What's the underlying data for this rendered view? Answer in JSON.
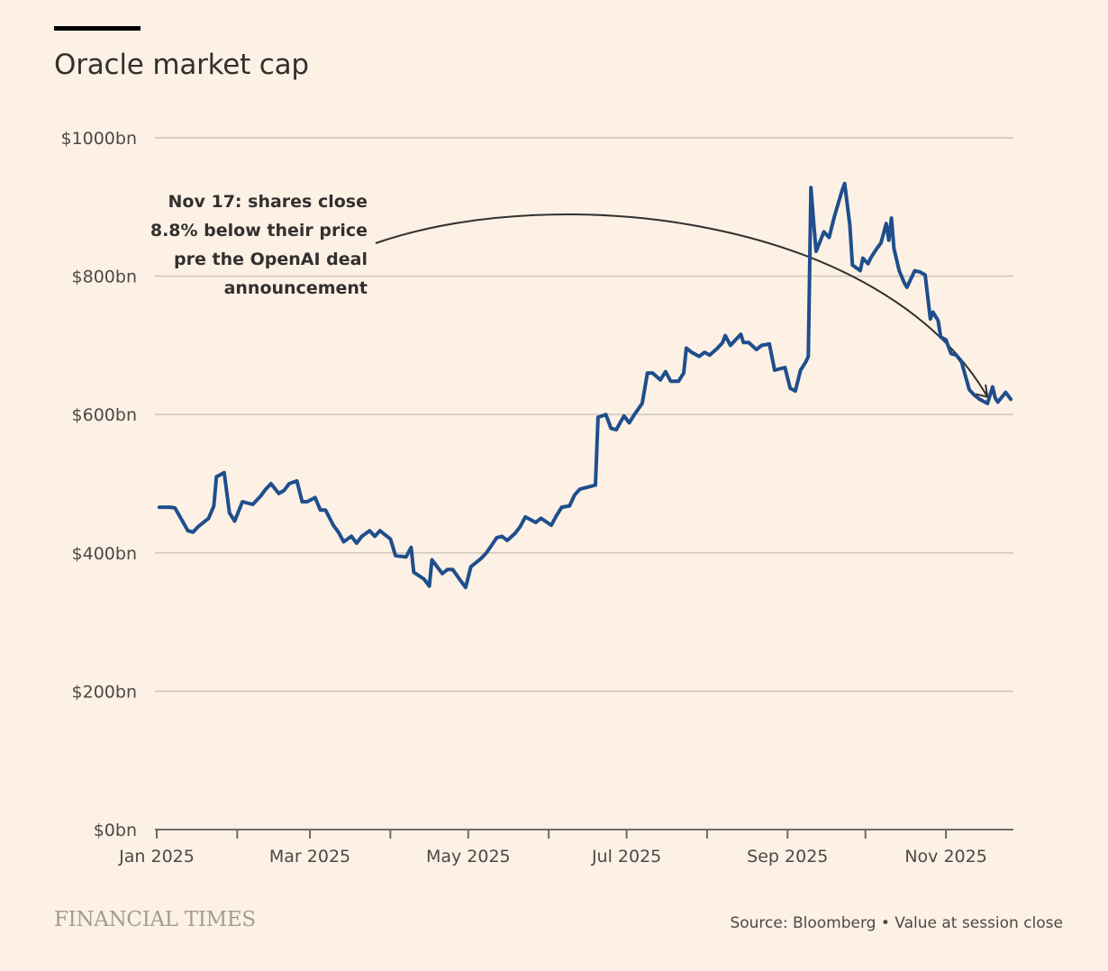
{
  "title": "Oracle market cap",
  "brand": "FINANCIAL TIMES",
  "source": "Source: Bloomberg • Value at session close",
  "colors": {
    "background": "#fdf1e6",
    "line": "#1f4e8c",
    "grid": "#ccc2b8",
    "axis": "#6f6a66",
    "text": "#33302e",
    "annotation_arrow": "#33302e"
  },
  "chart_data": {
    "type": "line",
    "title": "Oracle market cap",
    "xlabel": "",
    "ylabel": "",
    "ylim": [
      0,
      1000
    ],
    "yticks": [
      0,
      200,
      400,
      600,
      800,
      1000
    ],
    "ytick_labels": [
      "$0bn",
      "$200bn",
      "$400bn",
      "$600bn",
      "$800bn",
      "$1000bn"
    ],
    "xlim": [
      "2025-01-01",
      "2025-11-27"
    ],
    "xticks": [
      "2025-01-01",
      "2025-02-01",
      "2025-03-01",
      "2025-04-01",
      "2025-05-01",
      "2025-06-01",
      "2025-07-01",
      "2025-08-01",
      "2025-09-01",
      "2025-10-01",
      "2025-11-01"
    ],
    "xtick_labels": [
      "Jan 2025",
      "",
      "Mar 2025",
      "",
      "May 2025",
      "",
      "Jul 2025",
      "",
      "Sep 2025",
      "",
      "Nov 2025"
    ],
    "grid": true,
    "annotation": {
      "lines": [
        "Nov 17: shares close",
        "8.8% below their price",
        "pre the OpenAI deal",
        "announcement"
      ],
      "arrow_to": [
        "2025-11-17",
        615
      ]
    },
    "series": [
      {
        "name": "Oracle market cap ($bn)",
        "points": [
          [
            "2025-01-02",
            466
          ],
          [
            "2025-01-06",
            466
          ],
          [
            "2025-01-08",
            465
          ],
          [
            "2025-01-10",
            452
          ],
          [
            "2025-01-13",
            432
          ],
          [
            "2025-01-15",
            430
          ],
          [
            "2025-01-17",
            438
          ],
          [
            "2025-01-21",
            450
          ],
          [
            "2025-01-23",
            468
          ],
          [
            "2025-01-24",
            510
          ],
          [
            "2025-01-27",
            516
          ],
          [
            "2025-01-29",
            458
          ],
          [
            "2025-01-31",
            446
          ],
          [
            "2025-02-03",
            474
          ],
          [
            "2025-02-05",
            472
          ],
          [
            "2025-02-07",
            470
          ],
          [
            "2025-02-10",
            482
          ],
          [
            "2025-02-12",
            492
          ],
          [
            "2025-02-14",
            500
          ],
          [
            "2025-02-17",
            486
          ],
          [
            "2025-02-19",
            490
          ],
          [
            "2025-02-21",
            500
          ],
          [
            "2025-02-24",
            504
          ],
          [
            "2025-02-26",
            474
          ],
          [
            "2025-02-28",
            474
          ],
          [
            "2025-03-03",
            480
          ],
          [
            "2025-03-05",
            462
          ],
          [
            "2025-03-07",
            462
          ],
          [
            "2025-03-10",
            440
          ],
          [
            "2025-03-12",
            430
          ],
          [
            "2025-03-14",
            416
          ],
          [
            "2025-03-17",
            424
          ],
          [
            "2025-03-19",
            414
          ],
          [
            "2025-03-21",
            424
          ],
          [
            "2025-03-24",
            432
          ],
          [
            "2025-03-26",
            424
          ],
          [
            "2025-03-28",
            432
          ],
          [
            "2025-04-01",
            420
          ],
          [
            "2025-04-03",
            396
          ],
          [
            "2025-04-07",
            394
          ],
          [
            "2025-04-09",
            408
          ],
          [
            "2025-04-10",
            372
          ],
          [
            "2025-04-14",
            362
          ],
          [
            "2025-04-16",
            352
          ],
          [
            "2025-04-17",
            390
          ],
          [
            "2025-04-21",
            370
          ],
          [
            "2025-04-23",
            376
          ],
          [
            "2025-04-25",
            376
          ],
          [
            "2025-04-28",
            360
          ],
          [
            "2025-04-30",
            350
          ],
          [
            "2025-05-02",
            380
          ],
          [
            "2025-05-06",
            392
          ],
          [
            "2025-05-08",
            400
          ],
          [
            "2025-05-12",
            422
          ],
          [
            "2025-05-14",
            424
          ],
          [
            "2025-05-16",
            418
          ],
          [
            "2025-05-19",
            428
          ],
          [
            "2025-05-21",
            438
          ],
          [
            "2025-05-23",
            452
          ],
          [
            "2025-05-27",
            444
          ],
          [
            "2025-05-29",
            450
          ],
          [
            "2025-06-02",
            440
          ],
          [
            "2025-06-04",
            454
          ],
          [
            "2025-06-06",
            466
          ],
          [
            "2025-06-09",
            468
          ],
          [
            "2025-06-11",
            484
          ],
          [
            "2025-06-13",
            492
          ],
          [
            "2025-06-17",
            496
          ],
          [
            "2025-06-19",
            498
          ],
          [
            "2025-06-20",
            596
          ],
          [
            "2025-06-23",
            600
          ],
          [
            "2025-06-25",
            580
          ],
          [
            "2025-06-27",
            578
          ],
          [
            "2025-06-30",
            598
          ],
          [
            "2025-07-02",
            588
          ],
          [
            "2025-07-04",
            600
          ],
          [
            "2025-07-07",
            616
          ],
          [
            "2025-07-09",
            660
          ],
          [
            "2025-07-11",
            660
          ],
          [
            "2025-07-14",
            650
          ],
          [
            "2025-07-16",
            662
          ],
          [
            "2025-07-18",
            648
          ],
          [
            "2025-07-21",
            648
          ],
          [
            "2025-07-23",
            660
          ],
          [
            "2025-07-24",
            696
          ],
          [
            "2025-07-26",
            690
          ],
          [
            "2025-07-29",
            684
          ],
          [
            "2025-07-31",
            690
          ],
          [
            "2025-08-02",
            686
          ],
          [
            "2025-08-05",
            696
          ],
          [
            "2025-08-07",
            704
          ],
          [
            "2025-08-08",
            714
          ],
          [
            "2025-08-10",
            700
          ],
          [
            "2025-08-12",
            708
          ],
          [
            "2025-08-14",
            716
          ],
          [
            "2025-08-15",
            704
          ],
          [
            "2025-08-17",
            704
          ],
          [
            "2025-08-20",
            694
          ],
          [
            "2025-08-22",
            700
          ],
          [
            "2025-08-25",
            702
          ],
          [
            "2025-08-27",
            664
          ],
          [
            "2025-08-29",
            666
          ],
          [
            "2025-08-31",
            668
          ],
          [
            "2025-09-02",
            638
          ],
          [
            "2025-09-04",
            634
          ],
          [
            "2025-09-06",
            664
          ],
          [
            "2025-09-08",
            676
          ],
          [
            "2025-09-09",
            684
          ],
          [
            "2025-09-10",
            928
          ],
          [
            "2025-09-11",
            880
          ],
          [
            "2025-09-12",
            836
          ],
          [
            "2025-09-15",
            864
          ],
          [
            "2025-09-17",
            856
          ],
          [
            "2025-09-19",
            886
          ],
          [
            "2025-09-22",
            924
          ],
          [
            "2025-09-23",
            934
          ],
          [
            "2025-09-25",
            874
          ],
          [
            "2025-09-26",
            816
          ],
          [
            "2025-09-29",
            808
          ],
          [
            "2025-09-30",
            826
          ],
          [
            "2025-10-02",
            818
          ],
          [
            "2025-10-03",
            826
          ],
          [
            "2025-10-05",
            838
          ],
          [
            "2025-10-07",
            848
          ],
          [
            "2025-10-09",
            876
          ],
          [
            "2025-10-10",
            852
          ],
          [
            "2025-10-11",
            884
          ],
          [
            "2025-10-12",
            840
          ],
          [
            "2025-10-14",
            808
          ],
          [
            "2025-10-16",
            790
          ],
          [
            "2025-10-17",
            784
          ],
          [
            "2025-10-20",
            808
          ],
          [
            "2025-10-22",
            806
          ],
          [
            "2025-10-24",
            802
          ],
          [
            "2025-10-26",
            738
          ],
          [
            "2025-10-27",
            748
          ],
          [
            "2025-10-29",
            736
          ],
          [
            "2025-10-30",
            712
          ],
          [
            "2025-11-01",
            708
          ],
          [
            "2025-11-03",
            688
          ],
          [
            "2025-11-05",
            686
          ],
          [
            "2025-11-07",
            676
          ],
          [
            "2025-11-10",
            636
          ],
          [
            "2025-11-12",
            628
          ],
          [
            "2025-11-14",
            622
          ],
          [
            "2025-11-17",
            616
          ],
          [
            "2025-11-19",
            640
          ],
          [
            "2025-11-20",
            624
          ],
          [
            "2025-11-21",
            618
          ],
          [
            "2025-11-24",
            632
          ],
          [
            "2025-11-26",
            622
          ]
        ]
      }
    ]
  }
}
